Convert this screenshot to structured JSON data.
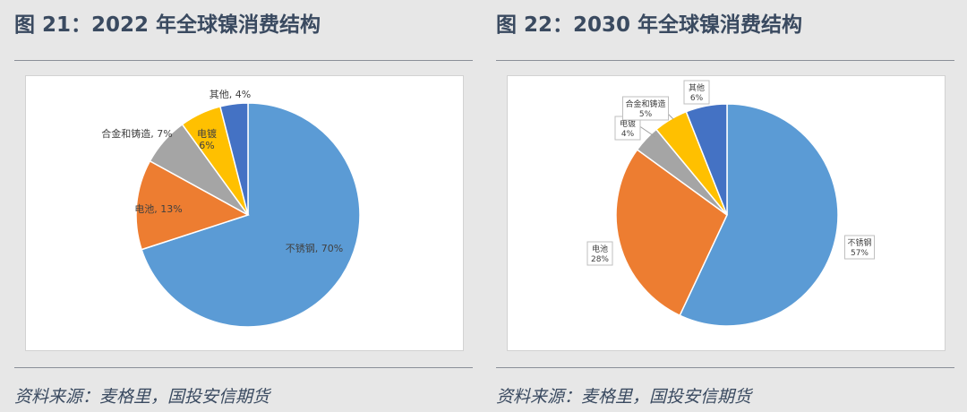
{
  "charts": [
    {
      "title": "图 21：2022 年全球镍消费结构",
      "source": "资料来源：麦格里，国投安信期货"
    },
    {
      "title": "图 22：2030 年全球镍消费结构",
      "source": "资料来源：麦格里，国投安信期货"
    }
  ],
  "chart_data": [
    {
      "type": "pie",
      "title": "图 21：2022 年全球镍消费结构",
      "unit": "%",
      "slices": [
        {
          "label": "不锈钢",
          "value": 70,
          "color": "#5b9bd5"
        },
        {
          "label": "电池",
          "value": 13,
          "color": "#ed7d31"
        },
        {
          "label": "合金和铸造",
          "value": 7,
          "color": "#a5a5a5"
        },
        {
          "label": "电镀",
          "value": 6,
          "color": "#ffc000"
        },
        {
          "label": "其他",
          "value": 4,
          "color": "#4472c4"
        }
      ]
    },
    {
      "type": "pie",
      "title": "图 22：2030 年全球镍消费结构",
      "unit": "%",
      "slices": [
        {
          "label": "不锈钢",
          "value": 57,
          "color": "#5b9bd5"
        },
        {
          "label": "电池",
          "value": 28,
          "color": "#ed7d31"
        },
        {
          "label": "电镀",
          "value": 4,
          "color": "#a5a5a5"
        },
        {
          "label": "合金和铸造",
          "value": 5,
          "color": "#ffc000"
        },
        {
          "label": "其他",
          "value": 6,
          "color": "#4472c4"
        }
      ]
    }
  ]
}
